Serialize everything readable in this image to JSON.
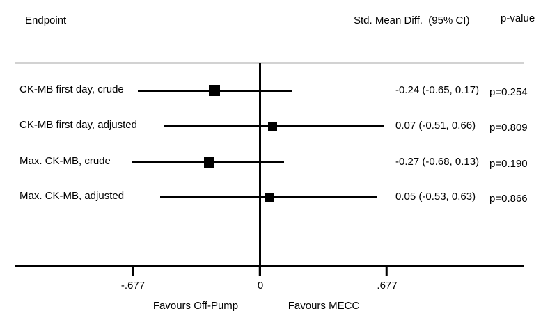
{
  "chart_data": {
    "type": "forest",
    "columns": {
      "endpoint": "Endpoint",
      "effect": "Std. Mean Diff.  (95% CI)",
      "pvalue": "p-value"
    },
    "rows": [
      {
        "label": "CK-MB first day, crude",
        "mean": -0.24,
        "ci_low": -0.65,
        "ci_high": 0.17,
        "effect_text": "-0.24 (-0.65, 0.17)",
        "p_text": "p=0.254",
        "marker_size": 16
      },
      {
        "label": "CK-MB first day, adjusted",
        "mean": 0.07,
        "ci_low": -0.51,
        "ci_high": 0.66,
        "effect_text": "0.07 (-0.51, 0.66)",
        "p_text": "p=0.809",
        "marker_size": 13
      },
      {
        "label": "Max. CK-MB, crude",
        "mean": -0.27,
        "ci_low": -0.68,
        "ci_high": 0.13,
        "effect_text": "-0.27 (-0.68, 0.13)",
        "p_text": "p=0.190",
        "marker_size": 15
      },
      {
        "label": "Max. CK-MB, adjusted",
        "mean": 0.05,
        "ci_low": -0.53,
        "ci_high": 0.63,
        "effect_text": "0.05 (-0.53, 0.63)",
        "p_text": "p=0.866",
        "marker_size": 13
      }
    ],
    "axis": {
      "ticks": [
        -0.677,
        0,
        0.677
      ],
      "tick_labels": [
        "-.677",
        "0",
        ".677"
      ],
      "xlim": [
        -1.3,
        1.41
      ],
      "favours_left": "Favours Off-Pump",
      "favours_right": "Favours MECC",
      "grid": false,
      "legend": "none"
    },
    "colors": {
      "ink": "#000000",
      "top_rule": "#d2d2d2",
      "background": "#ffffff"
    }
  }
}
